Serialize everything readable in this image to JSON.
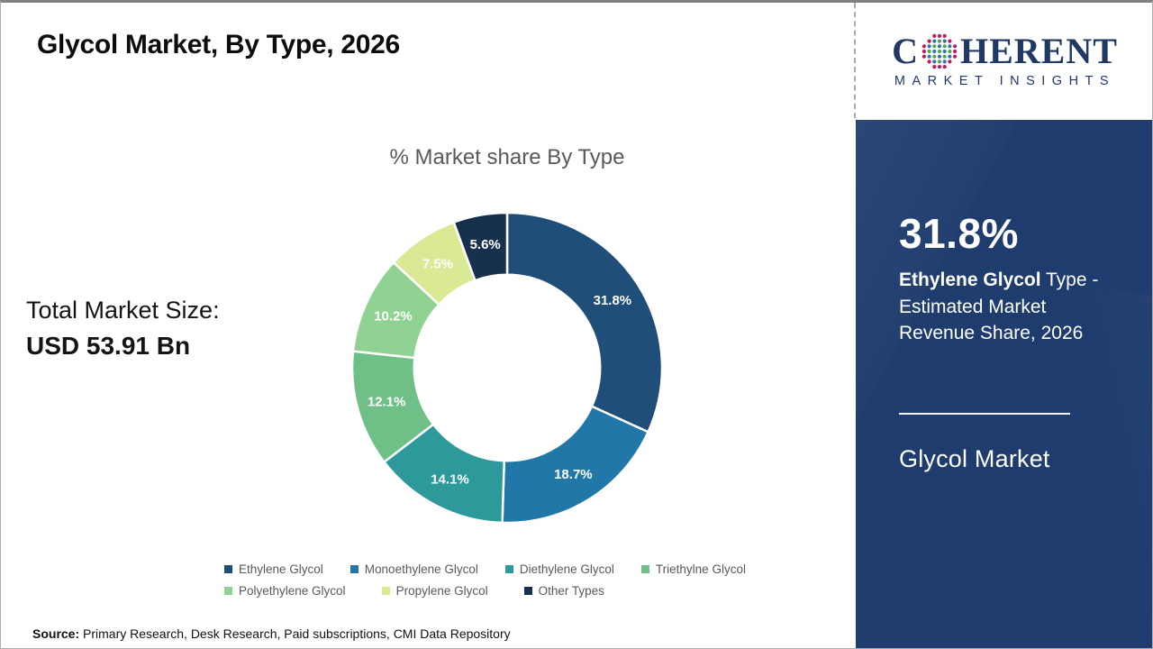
{
  "page": {
    "title": "Glycol Market, By Type, 2026"
  },
  "left_panel": {
    "total_label": "Total Market Size:",
    "total_value": "USD 53.91 Bn"
  },
  "logo": {
    "word_part1": "C",
    "word_part2": "HERENT",
    "word_line2": "MARKET INSIGHTS",
    "navy": "#1f3864",
    "dot_blue": "#2e75b6",
    "dot_green": "#54a83d",
    "dot_crimson": "#c2195b"
  },
  "sidebar": {
    "highlight_value": "31.8%",
    "desc_bold": "Ethylene Glycol",
    "desc_rest": " Type - Estimated Market Revenue Share, 2026",
    "footer": "Glycol Market",
    "bg_color": "#1e3c6e"
  },
  "source": {
    "label": "Source:",
    "text": "Primary Research, Desk Research, Paid subscriptions, CMI Data Repository"
  },
  "chart_data": {
    "type": "pie",
    "subtype": "donut",
    "title": "% Market share By Type",
    "unit": "%",
    "series": [
      {
        "label": "Ethylene Glycol",
        "value": 31.8,
        "color": "#1F4E79"
      },
      {
        "label": "Monoethylene Glycol",
        "value": 18.7,
        "color": "#2178A8"
      },
      {
        "label": "Diethylene Glycol",
        "value": 14.1,
        "color": "#2E999B"
      },
      {
        "label": "Triethylne Glycol",
        "value": 12.1,
        "color": "#6FC087"
      },
      {
        "label": "Polyethylene Glycol",
        "value": 10.2,
        "color": "#90D291"
      },
      {
        "label": "Propylene Glycol",
        "value": 7.5,
        "color": "#DAE993"
      },
      {
        "label": "Other Types",
        "value": 5.6,
        "color": "#16304D"
      }
    ],
    "start_angle_deg": 0,
    "direction": "clockwise",
    "donut_hole_ratio": 0.6,
    "data_labels": "percent, on-slice, white bold",
    "legend_position": "bottom",
    "legend_wrap": 4,
    "total_label_sum": 100.0
  }
}
